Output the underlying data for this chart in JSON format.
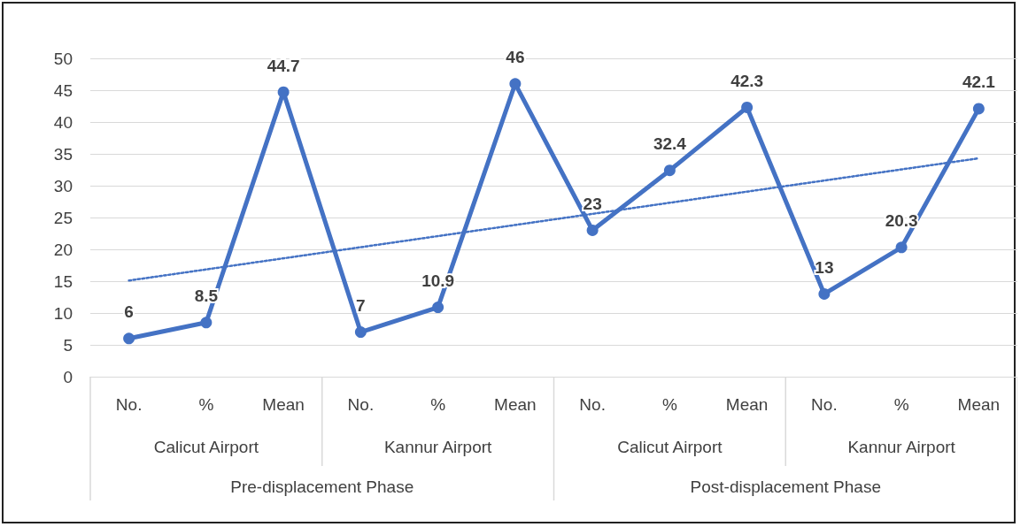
{
  "chart_data": {
    "type": "line",
    "categories": [
      "No.",
      "%",
      "Mean",
      "No.",
      "%",
      "Mean",
      "No.",
      "%",
      "Mean",
      "No.",
      "%",
      "Mean"
    ],
    "series": [
      {
        "color": "#4472c4",
        "values": [
          6,
          8.5,
          44.7,
          7,
          10.9,
          46,
          23,
          32.4,
          42.3,
          13,
          20.3,
          42.1
        ],
        "value_labels": [
          "6",
          "8.5",
          "44.7",
          "7",
          "10.9",
          "46",
          "23",
          "32.4",
          "42.3",
          "13",
          "20.3",
          "42.1"
        ],
        "marker": "circle",
        "line_style": "solid"
      },
      {
        "color": "#4472c4",
        "values": [
          15.1,
          null,
          null,
          null,
          null,
          null,
          null,
          null,
          null,
          null,
          null,
          34.3
        ],
        "marker": "none",
        "line_style": "dotted"
      }
    ],
    "ylim": [
      0,
      50
    ],
    "yticks": [
      0,
      5,
      10,
      15,
      20,
      25,
      30,
      35,
      40,
      45,
      50
    ],
    "grid": "y",
    "annotations": [
      "Calicut Airport",
      "Kannur Airport",
      "Calicut Airport",
      "Kannur Airport",
      "Pre-displacement Phase",
      "Post-displacement Phase"
    ]
  }
}
